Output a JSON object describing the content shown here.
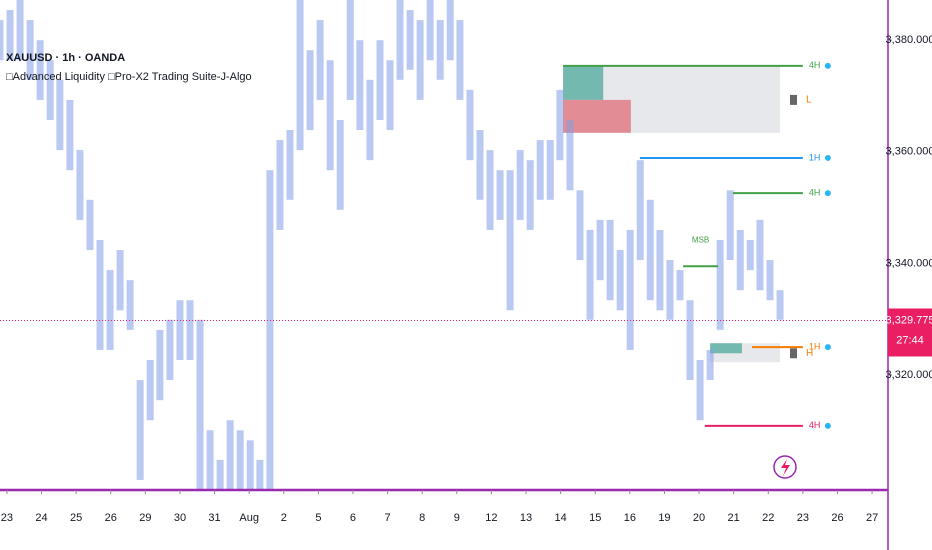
{
  "chart_data": {
    "type": "range-bar",
    "title": "XAUUSD · 1h · OANDA",
    "subtitle": "□Advanced Liquidity □Pro-X2 Trading Suite-J-Algo",
    "xlim": [
      -0.2,
      25.46
    ],
    "ylim": [
      3299.4,
      3387.2
    ],
    "xticks": [
      {
        "value": 0,
        "label": "23"
      },
      {
        "value": 1,
        "label": "24"
      },
      {
        "value": 2,
        "label": "25"
      },
      {
        "value": 3,
        "label": "26"
      },
      {
        "value": 4,
        "label": "29"
      },
      {
        "value": 5,
        "label": "30"
      },
      {
        "value": 6,
        "label": "31"
      },
      {
        "value": 7,
        "label": "Aug"
      },
      {
        "value": 8,
        "label": "2"
      },
      {
        "value": 9,
        "label": "5"
      },
      {
        "value": 10,
        "label": "6"
      },
      {
        "value": 11,
        "label": "7"
      },
      {
        "value": 12,
        "label": "8"
      },
      {
        "value": 13,
        "label": "9"
      },
      {
        "value": 14,
        "label": "12"
      },
      {
        "value": 15,
        "label": "13"
      },
      {
        "value": 16,
        "label": "14"
      },
      {
        "value": 17,
        "label": "15"
      },
      {
        "value": 18,
        "label": "16"
      },
      {
        "value": 19,
        "label": "19"
      },
      {
        "value": 20,
        "label": "20"
      },
      {
        "value": 21,
        "label": "21"
      },
      {
        "value": 22,
        "label": "22"
      },
      {
        "value": 23,
        "label": "23"
      },
      {
        "value": 24,
        "label": "26"
      },
      {
        "value": 25,
        "label": "27"
      }
    ],
    "yticks": [
      {
        "value": 3320,
        "label": "3,320.000"
      },
      {
        "value": 3340,
        "label": "3,340.000"
      },
      {
        "value": 3360,
        "label": "3,360.000"
      },
      {
        "value": 3380,
        "label": "3,380.000"
      }
    ],
    "color": "#7f9de6",
    "x": [
      -0.2,
      0.09,
      0.38,
      0.67,
      0.96,
      1.25,
      1.53,
      1.82,
      2.11,
      2.4,
      2.69,
      2.98,
      3.27,
      3.56,
      3.85,
      4.14,
      4.42,
      4.71,
      5.0,
      5.29,
      5.58,
      5.87,
      6.16,
      6.45,
      6.74,
      7.03,
      7.31,
      7.6,
      7.89,
      8.18,
      8.47,
      8.76,
      9.05,
      9.34,
      9.63,
      9.92,
      10.2,
      10.49,
      10.78,
      11.07,
      11.36,
      11.65,
      11.94,
      12.23,
      12.52,
      12.81,
      13.09,
      13.38,
      13.67,
      13.96,
      14.25,
      14.54,
      14.83,
      15.12,
      15.41,
      15.7,
      15.98,
      16.27,
      16.56,
      16.85,
      17.14,
      17.43,
      17.72,
      18.01,
      18.3,
      18.59,
      18.87,
      19.16,
      19.45,
      19.74,
      20.03,
      20.32,
      20.61,
      20.9,
      21.19,
      21.48,
      21.76,
      22.05,
      22.34
    ],
    "high": [
      3383.6,
      3385.4,
      3387.2,
      3383.6,
      3380.0,
      3376.4,
      3372.9,
      3369.3,
      3360.3,
      3351.4,
      3344.2,
      3338.8,
      3342.4,
      3337.0,
      3319.1,
      3322.7,
      3328.1,
      3329.9,
      3333.4,
      3333.4,
      3329.9,
      3310.1,
      3304.8,
      3311.9,
      3310.1,
      3308.3,
      3304.8,
      3356.7,
      3362.1,
      3363.9,
      3387.2,
      3378.2,
      3383.6,
      3376.4,
      3365.7,
      3387.2,
      3380.0,
      3372.9,
      3380.0,
      3376.4,
      3387.2,
      3385.4,
      3383.6,
      3387.2,
      3383.6,
      3387.2,
      3383.6,
      3371.1,
      3363.9,
      3360.3,
      3356.7,
      3356.7,
      3360.3,
      3358.5,
      3362.1,
      3362.1,
      3371.1,
      3365.7,
      3353.1,
      3346.0,
      3347.8,
      3347.8,
      3342.4,
      3346.0,
      3358.5,
      3351.4,
      3346.0,
      3340.6,
      3338.8,
      3333.4,
      3322.7,
      3324.5,
      3344.2,
      3353.1,
      3346.0,
      3344.2,
      3347.8,
      3340.6,
      3335.2
    ],
    "low": [
      3376.4,
      3376.4,
      3376.4,
      3372.9,
      3369.3,
      3365.7,
      3360.3,
      3356.7,
      3347.8,
      3342.4,
      3324.5,
      3324.5,
      3331.6,
      3328.1,
      3301.2,
      3311.9,
      3315.5,
      3319.1,
      3322.7,
      3322.7,
      3299.4,
      3299.4,
      3299.4,
      3299.4,
      3299.4,
      3299.4,
      3299.4,
      3299.4,
      3346.0,
      3351.4,
      3360.3,
      3363.9,
      3369.3,
      3356.7,
      3349.6,
      3369.3,
      3363.9,
      3358.5,
      3365.7,
      3363.9,
      3372.9,
      3374.7,
      3369.3,
      3376.4,
      3372.9,
      3376.4,
      3369.3,
      3358.5,
      3351.4,
      3346.0,
      3347.8,
      3331.6,
      3347.8,
      3346.0,
      3351.4,
      3351.4,
      3358.5,
      3353.1,
      3340.6,
      3329.9,
      3337.0,
      3333.4,
      3331.6,
      3324.5,
      3340.6,
      3333.4,
      3331.6,
      3329.9,
      3333.4,
      3319.1,
      3311.9,
      3319.1,
      3328.1,
      3340.6,
      3335.2,
      3338.8,
      3335.2,
      3333.4,
      3329.9
    ],
    "last_price": {
      "value": 3329.775,
      "label": "3,329.775"
    },
    "countdown": "27:44",
    "levels": [
      {
        "label": "4H",
        "price": 3375.4,
        "start": 16.07,
        "end": 23.0,
        "color": "#43a047"
      },
      {
        "label": "1H",
        "price": 3358.9,
        "start": 18.29,
        "end": 23.0,
        "color": "#2196f3"
      },
      {
        "label": "4H",
        "price": 3352.6,
        "start": 20.98,
        "end": 23.0,
        "color": "#43a047"
      },
      {
        "label": "MSB",
        "price": 3339.5,
        "start": 19.54,
        "end": 20.55,
        "color": "#43a047"
      },
      {
        "label": "1H",
        "price": 3325.0,
        "start": 21.53,
        "end": 23.0,
        "color": "#f57c00"
      },
      {
        "label": "4H",
        "price": 3310.9,
        "start": 20.17,
        "end": 23.0,
        "color": "#e91e63"
      }
    ],
    "zones": [
      {
        "x0": 16.07,
        "x1": 22.34,
        "top": 3375.4,
        "bottom": 3363.4,
        "color": "#e3e4e8"
      },
      {
        "x0": 16.07,
        "x1": 17.23,
        "top": 3375.4,
        "bottom": 3369.3,
        "color": "#5fb0a4"
      },
      {
        "x0": 16.07,
        "x1": 18.03,
        "top": 3369.3,
        "bottom": 3363.4,
        "color": "#e07b87"
      },
      {
        "x0": 20.32,
        "x1": 22.34,
        "top": 3325.7,
        "bottom": 3322.3,
        "color": "#e3e4e8"
      },
      {
        "x0": 20.32,
        "x1": 21.24,
        "top": 3325.7,
        "bottom": 3323.9,
        "color": "#5fb0a4"
      }
    ],
    "markers": [
      {
        "label": "L",
        "price": 3369.3,
        "color": "#f57c00"
      },
      {
        "label": "H",
        "price": 3323.9,
        "color": "#f57c00"
      }
    ]
  }
}
